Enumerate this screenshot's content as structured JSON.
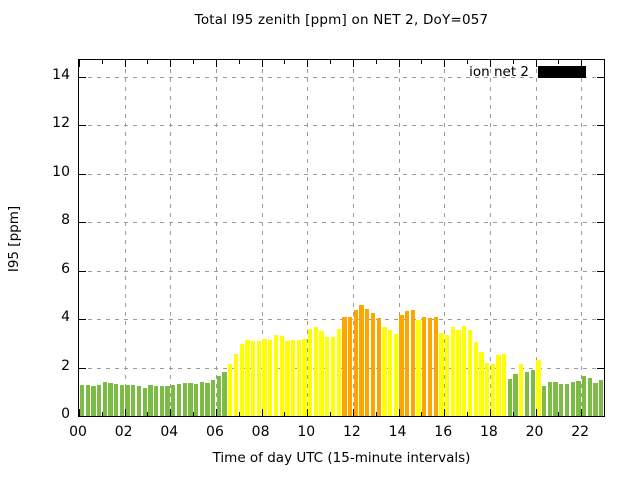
{
  "title": "Total I95 zenith [ppm] on NET 2, DoY=057",
  "legend": {
    "label": "ion net 2",
    "swatch_color": "#000000"
  },
  "axes": {
    "x_label": "Time of day UTC (15-minute intervals)",
    "y_label": "I95 [ppm]",
    "x_major_ticks": [
      {
        "hour": 0,
        "label": "00"
      },
      {
        "hour": 2,
        "label": "02"
      },
      {
        "hour": 4,
        "label": "04"
      },
      {
        "hour": 6,
        "label": "06"
      },
      {
        "hour": 8,
        "label": "08"
      },
      {
        "hour": 10,
        "label": "10"
      },
      {
        "hour": 12,
        "label": "12"
      },
      {
        "hour": 14,
        "label": "14"
      },
      {
        "hour": 16,
        "label": "16"
      },
      {
        "hour": 18,
        "label": "18"
      },
      {
        "hour": 20,
        "label": "20"
      },
      {
        "hour": 22,
        "label": "22"
      }
    ],
    "x_minor_tick_every_hours": 1,
    "y_ticks": [
      {
        "value": 0,
        "label": "0"
      },
      {
        "value": 2,
        "label": "2"
      },
      {
        "value": 4,
        "label": "4"
      },
      {
        "value": 6,
        "label": "6"
      },
      {
        "value": 8,
        "label": "8"
      },
      {
        "value": 10,
        "label": "10"
      },
      {
        "value": 12,
        "label": "12"
      },
      {
        "value": 14,
        "label": "14"
      }
    ]
  },
  "chart_data": {
    "type": "bar",
    "title": "Total I95 zenith [ppm] on NET 2, DoY=057",
    "xlabel": "Time of day UTC (15-minute intervals)",
    "ylabel": "I95 [ppm]",
    "series_name": "ion net 2",
    "interval_minutes": 15,
    "x_range_hours": [
      0,
      23
    ],
    "ylim": [
      0,
      14.7
    ],
    "grid": true,
    "legend_position": "top-right-inside",
    "categories": [
      "00:00",
      "00:15",
      "00:30",
      "00:45",
      "01:00",
      "01:15",
      "01:30",
      "01:45",
      "02:00",
      "02:15",
      "02:30",
      "02:45",
      "03:00",
      "03:15",
      "03:30",
      "03:45",
      "04:00",
      "04:15",
      "04:30",
      "04:45",
      "05:00",
      "05:15",
      "05:30",
      "05:45",
      "06:00",
      "06:15",
      "06:30",
      "06:45",
      "07:00",
      "07:15",
      "07:30",
      "07:45",
      "08:00",
      "08:15",
      "08:30",
      "08:45",
      "09:00",
      "09:15",
      "09:30",
      "09:45",
      "10:00",
      "10:15",
      "10:30",
      "10:45",
      "11:00",
      "11:15",
      "11:30",
      "11:45",
      "12:00",
      "12:15",
      "12:30",
      "12:45",
      "13:00",
      "13:15",
      "13:30",
      "13:45",
      "14:00",
      "14:15",
      "14:30",
      "14:45",
      "15:00",
      "15:15",
      "15:30",
      "15:45",
      "16:00",
      "16:15",
      "16:30",
      "16:45",
      "17:00",
      "17:15",
      "17:30",
      "17:45",
      "18:00",
      "18:15",
      "18:30",
      "18:45",
      "19:00",
      "19:15",
      "19:30",
      "19:45",
      "20:00",
      "20:15",
      "20:30",
      "20:45",
      "21:00",
      "21:15",
      "21:30",
      "21:45",
      "22:00",
      "22:15",
      "22:30",
      "22:45"
    ],
    "values": [
      1.3,
      1.3,
      1.26,
      1.3,
      1.4,
      1.38,
      1.34,
      1.3,
      1.3,
      1.27,
      1.26,
      1.17,
      1.3,
      1.26,
      1.23,
      1.26,
      1.3,
      1.34,
      1.37,
      1.37,
      1.34,
      1.4,
      1.37,
      1.48,
      1.64,
      1.82,
      2.15,
      2.57,
      2.99,
      3.15,
      3.08,
      3.08,
      3.18,
      3.15,
      3.35,
      3.31,
      3.08,
      3.12,
      3.12,
      3.18,
      3.59,
      3.67,
      3.49,
      3.26,
      3.26,
      3.59,
      4.08,
      4.08,
      4.38,
      4.59,
      4.43,
      4.25,
      4.05,
      3.66,
      3.57,
      3.4,
      4.18,
      4.32,
      4.37,
      3.98,
      4.07,
      4.04,
      4.08,
      3.42,
      3.33,
      3.67,
      3.56,
      3.72,
      3.55,
      3.06,
      2.65,
      2.2,
      2.13,
      2.5,
      2.58,
      1.54,
      1.75,
      2.16,
      1.83,
      1.9,
      2.31,
      1.24,
      1.42,
      1.42,
      1.31,
      1.34,
      1.42,
      1.45,
      1.65,
      1.56,
      1.38,
      1.48
    ],
    "color_rule": "green if value < 2, yellow if 2 <= value < 4, orange if value >= 4",
    "color_thresholds": [
      {
        "max": 2,
        "color": "#7cbb44",
        "name": "green"
      },
      {
        "max": 4,
        "color": "#ffff00",
        "name": "yellow"
      },
      {
        "max": null,
        "color": "#ffa500",
        "name": "orange"
      }
    ],
    "grid_color": "#9c9c9c",
    "axis_color": "#000000",
    "background_color": "#ffffff"
  }
}
